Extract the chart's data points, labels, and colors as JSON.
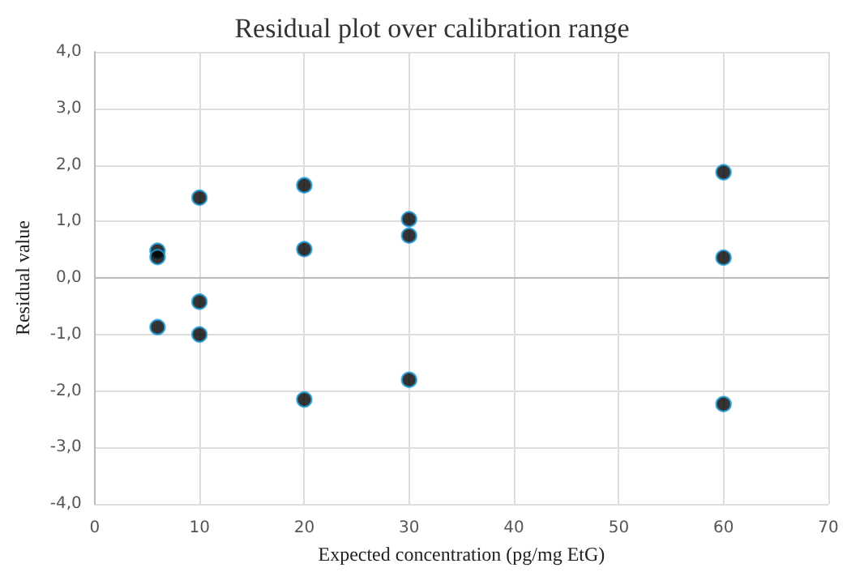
{
  "chart_data": {
    "type": "scatter",
    "title": "Residual plot over calibration range",
    "xlabel": "Expected concentration (pg/mg EtG)",
    "ylabel": "Residual value",
    "series": [
      {
        "color": "#000000",
        "x": [
          6,
          6,
          6,
          10,
          10,
          10,
          20,
          20,
          20,
          30,
          30,
          30,
          60,
          60,
          60
        ],
        "values": [
          0.48,
          0.37,
          -0.87,
          1.42,
          -0.42,
          -1.0,
          1.64,
          0.51,
          -2.15,
          1.04,
          0.75,
          -1.8,
          1.87,
          0.36,
          -2.23
        ]
      }
    ],
    "xlim": [
      0,
      70
    ],
    "xticks": [
      0,
      10,
      20,
      30,
      40,
      50,
      60,
      70
    ],
    "ylim": [
      -4,
      4
    ],
    "yticks": [
      {
        "value": -4,
        "label": "-4,0"
      },
      {
        "value": -3,
        "label": "-3,0"
      },
      {
        "value": -2,
        "label": "-2,0"
      },
      {
        "value": -1,
        "label": "-1,0"
      },
      {
        "value": 0,
        "label": "0,0"
      },
      {
        "value": 1,
        "label": "1,0"
      },
      {
        "value": 2,
        "label": "2,0"
      },
      {
        "value": 3,
        "label": "3,0"
      },
      {
        "value": 4,
        "label": "4,0"
      }
    ],
    "grid": true,
    "marker": "circle"
  }
}
